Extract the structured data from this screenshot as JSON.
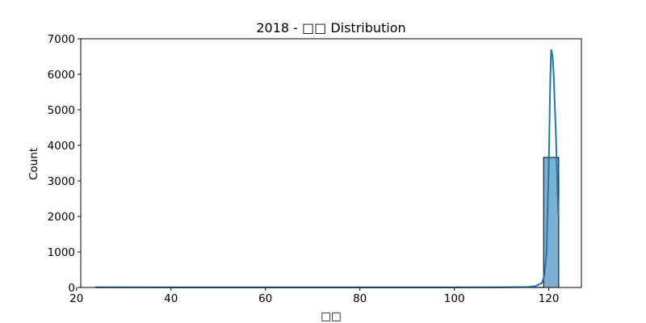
{
  "chart_data": {
    "type": "bar",
    "title": "2018 - □□ Distribution",
    "xlabel": "□□",
    "ylabel": "Count",
    "xlim": [
      20.9,
      126.9
    ],
    "ylim": [
      0,
      7000
    ],
    "xticks": [
      20,
      40,
      60,
      80,
      100,
      120
    ],
    "yticks": [
      0,
      1000,
      2000,
      3000,
      4000,
      5000,
      6000,
      7000
    ],
    "grid": false,
    "bins": [
      {
        "x0": 24.0,
        "x1": 26.8,
        "count": 1
      },
      {
        "x0": 26.8,
        "x1": 29.6,
        "count": 0
      },
      {
        "x0": 29.6,
        "x1": 32.5,
        "count": 0
      },
      {
        "x0": 32.5,
        "x1": 35.3,
        "count": 0
      },
      {
        "x0": 35.3,
        "x1": 38.1,
        "count": 0
      },
      {
        "x0": 38.1,
        "x1": 40.9,
        "count": 0
      },
      {
        "x0": 40.9,
        "x1": 43.7,
        "count": 0
      },
      {
        "x0": 43.7,
        "x1": 46.6,
        "count": 0
      },
      {
        "x0": 46.6,
        "x1": 49.4,
        "count": 0
      },
      {
        "x0": 49.4,
        "x1": 52.2,
        "count": 0
      },
      {
        "x0": 52.2,
        "x1": 55.0,
        "count": 0
      },
      {
        "x0": 55.0,
        "x1": 57.8,
        "count": 0
      },
      {
        "x0": 57.8,
        "x1": 60.7,
        "count": 0
      },
      {
        "x0": 60.7,
        "x1": 63.5,
        "count": 0
      },
      {
        "x0": 63.5,
        "x1": 66.3,
        "count": 0
      },
      {
        "x0": 66.3,
        "x1": 69.1,
        "count": 0
      },
      {
        "x0": 69.1,
        "x1": 72.0,
        "count": 0
      },
      {
        "x0": 72.0,
        "x1": 74.8,
        "count": 0
      },
      {
        "x0": 74.8,
        "x1": 77.6,
        "count": 0
      },
      {
        "x0": 77.6,
        "x1": 80.4,
        "count": 0
      },
      {
        "x0": 80.4,
        "x1": 83.2,
        "count": 0
      },
      {
        "x0": 83.2,
        "x1": 86.1,
        "count": 0
      },
      {
        "x0": 86.1,
        "x1": 88.9,
        "count": 0
      },
      {
        "x0": 88.9,
        "x1": 91.7,
        "count": 0
      },
      {
        "x0": 91.7,
        "x1": 94.5,
        "count": 0
      },
      {
        "x0": 94.5,
        "x1": 97.3,
        "count": 0
      },
      {
        "x0": 97.3,
        "x1": 100.2,
        "count": 0
      },
      {
        "x0": 100.2,
        "x1": 103.0,
        "count": 0
      },
      {
        "x0": 103.0,
        "x1": 105.8,
        "count": 0
      },
      {
        "x0": 105.8,
        "x1": 108.6,
        "count": 0
      },
      {
        "x0": 108.6,
        "x1": 111.4,
        "count": 0
      },
      {
        "x0": 111.4,
        "x1": 114.3,
        "count": 0
      },
      {
        "x0": 114.3,
        "x1": 117.1,
        "count": 0
      },
      {
        "x0": 117.1,
        "x1": 118.9,
        "count": 5
      },
      {
        "x0": 118.9,
        "x1": 122.1,
        "count": 3660
      }
    ],
    "kde_curve": {
      "x": [
        24,
        40,
        60,
        80,
        100,
        110,
        115,
        117,
        118.5,
        119,
        119.5,
        120,
        120.3,
        120.5,
        120.8,
        121,
        121.5,
        122
      ],
      "y": [
        5,
        3,
        2,
        2,
        3,
        5,
        10,
        30,
        120,
        300,
        900,
        3500,
        5800,
        6700,
        6500,
        6100,
        4300,
        2050
      ]
    },
    "colors": {
      "bar_fill": "#7fb0d4",
      "bar_edge": "#000000",
      "kde_line": "#1f77b4"
    }
  }
}
